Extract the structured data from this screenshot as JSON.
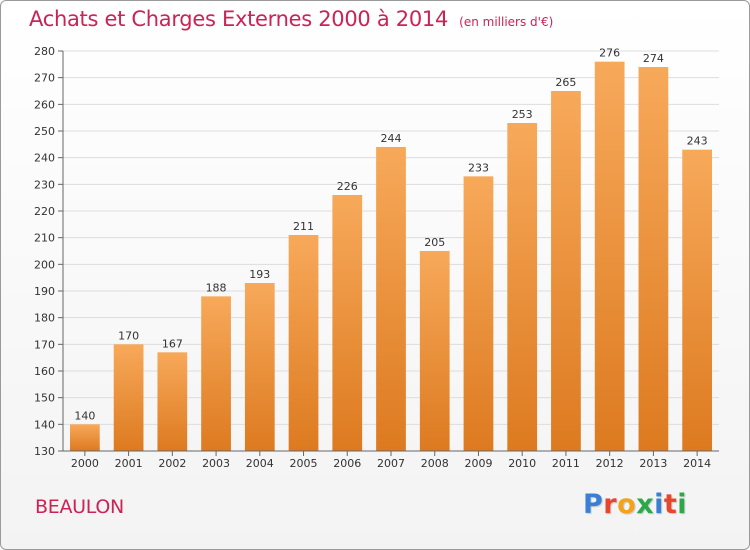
{
  "header": {
    "title": "Achats et Charges Externes 2000 à 2014",
    "subtitle": "(en milliers d'€)"
  },
  "footer": {
    "commune": "BEAULON",
    "logo_letters": [
      "P",
      "r",
      "o",
      "x",
      "i",
      "t",
      "i"
    ]
  },
  "colors": {
    "title": "#cc2255",
    "bar_top": "#f7a95a",
    "bar_bottom": "#dd7a20",
    "grid": "#dddddd",
    "logo": [
      "#3a7fd5",
      "#e8452c",
      "#f2a21b",
      "#2aa84a",
      "#3a7fd5",
      "#e8452c",
      "#2aa84a"
    ]
  },
  "chart_data": {
    "type": "bar",
    "title": "Achats et Charges Externes 2000 à 2014",
    "subtitle": "(en milliers d'€)",
    "categories": [
      "2000",
      "2001",
      "2002",
      "2003",
      "2004",
      "2005",
      "2006",
      "2007",
      "2008",
      "2009",
      "2010",
      "2011",
      "2012",
      "2013",
      "2014"
    ],
    "values": [
      140,
      170,
      167,
      188,
      193,
      211,
      226,
      244,
      205,
      233,
      253,
      265,
      276,
      274,
      243
    ],
    "ylim": [
      130,
      280
    ],
    "yticks": [
      130,
      140,
      150,
      160,
      170,
      180,
      190,
      200,
      210,
      220,
      230,
      240,
      250,
      260,
      270,
      280
    ],
    "grid": true,
    "xlabel": "",
    "ylabel": ""
  }
}
